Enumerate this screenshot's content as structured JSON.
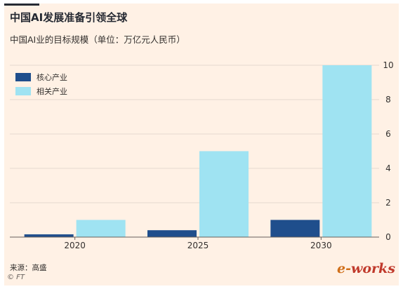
{
  "title": "中国AI发展准备引领全球",
  "subtitle": "中国AI业的目标规模（单位：万亿元人民币）",
  "source": "来源：高盛",
  "copyright": "© FT",
  "watermark": "e-works",
  "colors": {
    "background": "#fff1e5",
    "core": "#1f4e8c",
    "related": "#9fe3f2",
    "grid": "#e6d9ce",
    "text": "#33302e"
  },
  "chart_data": {
    "type": "bar",
    "title": "中国AI发展准备引领全球",
    "subtitle": "中国AI业的目标规模（单位：万亿元人民币）",
    "categories": [
      "2020",
      "2025",
      "2030"
    ],
    "series": [
      {
        "name": "核心产业",
        "values": [
          0.16,
          0.4,
          1.0
        ],
        "color": "#1f4e8c"
      },
      {
        "name": "相关产业",
        "values": [
          1.0,
          5.0,
          10.0
        ],
        "color": "#9fe3f2"
      }
    ],
    "ylim": [
      0,
      10
    ],
    "yticks": [
      0,
      2,
      4,
      6,
      8,
      10
    ],
    "y_axis_side": "right",
    "grid": true,
    "legend": "top-left"
  }
}
